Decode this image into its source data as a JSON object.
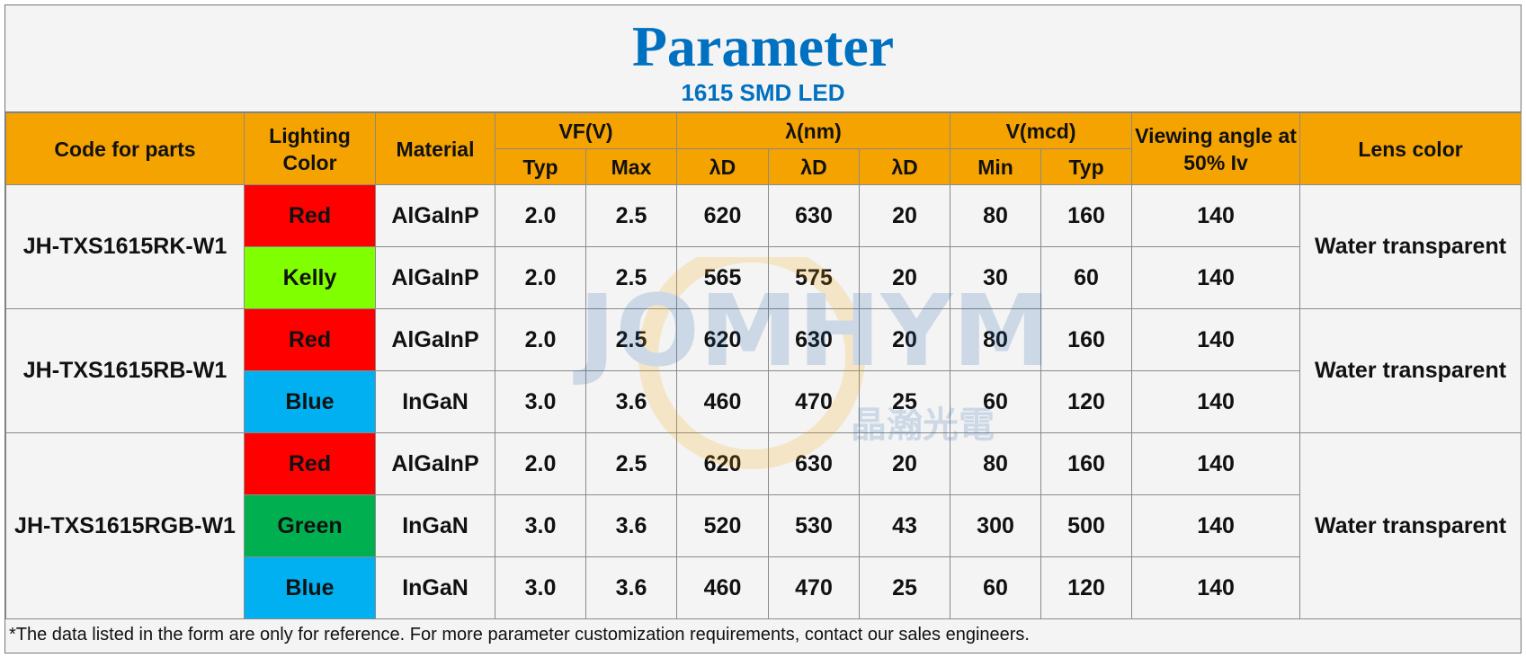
{
  "header": {
    "title": "Parameter",
    "subtitle": "1615 SMD LED"
  },
  "watermark": {
    "logo": "JOMHYM",
    "text": "晶瀚光電"
  },
  "table": {
    "columns": [
      "Code for parts",
      "Lighting Color",
      "Material",
      "VF(V)",
      "λ(nm)",
      "V(mcd)",
      "Viewing angle at 50% Iv",
      "Lens color"
    ],
    "subcolumns": [
      "Typ",
      "Max",
      "λD",
      "λD",
      "λD",
      "Min",
      "Typ"
    ],
    "header_color": "#f5a300",
    "groups": [
      {
        "code": "JH-TXS1615RK-W1",
        "lens": "Water transparent",
        "rows": [
          {
            "color": "Red",
            "fill": "#ff0000",
            "cells": [
              "AlGaInP",
              "2.0",
              "2.5",
              "620",
              "630",
              "20",
              "80",
              "160",
              "140"
            ]
          },
          {
            "color": "Kelly",
            "fill": "#80ff00",
            "cells": [
              "AlGaInP",
              "2.0",
              "2.5",
              "565",
              "575",
              "20",
              "30",
              "60",
              "140"
            ]
          }
        ]
      },
      {
        "code": "JH-TXS1615RB-W1",
        "lens": "Water transparent",
        "rows": [
          {
            "color": "Red",
            "fill": "#ff0000",
            "cells": [
              "AlGaInP",
              "2.0",
              "2.5",
              "620",
              "630",
              "20",
              "80",
              "160",
              "140"
            ]
          },
          {
            "color": "Blue",
            "fill": "#00b0f0",
            "cells": [
              "InGaN",
              "3.0",
              "3.6",
              "460",
              "470",
              "25",
              "60",
              "120",
              "140"
            ]
          }
        ]
      },
      {
        "code": "JH-TXS1615RGB-W1",
        "lens": "Water transparent",
        "rows": [
          {
            "color": "Red",
            "fill": "#ff0000",
            "cells": [
              "AlGaInP",
              "2.0",
              "2.5",
              "620",
              "630",
              "20",
              "80",
              "160",
              "140"
            ]
          },
          {
            "color": "Green",
            "fill": "#00b050",
            "cells": [
              "InGaN",
              "3.0",
              "3.6",
              "520",
              "530",
              "43",
              "300",
              "500",
              "140"
            ]
          },
          {
            "color": "Blue",
            "fill": "#00b0f0",
            "cells": [
              "InGaN",
              "3.0",
              "3.6",
              "460",
              "470",
              "25",
              "60",
              "120",
              "140"
            ]
          }
        ]
      }
    ]
  },
  "footnote": "*The data listed in the form are only for reference. For more parameter customization requirements, contact our sales engineers."
}
